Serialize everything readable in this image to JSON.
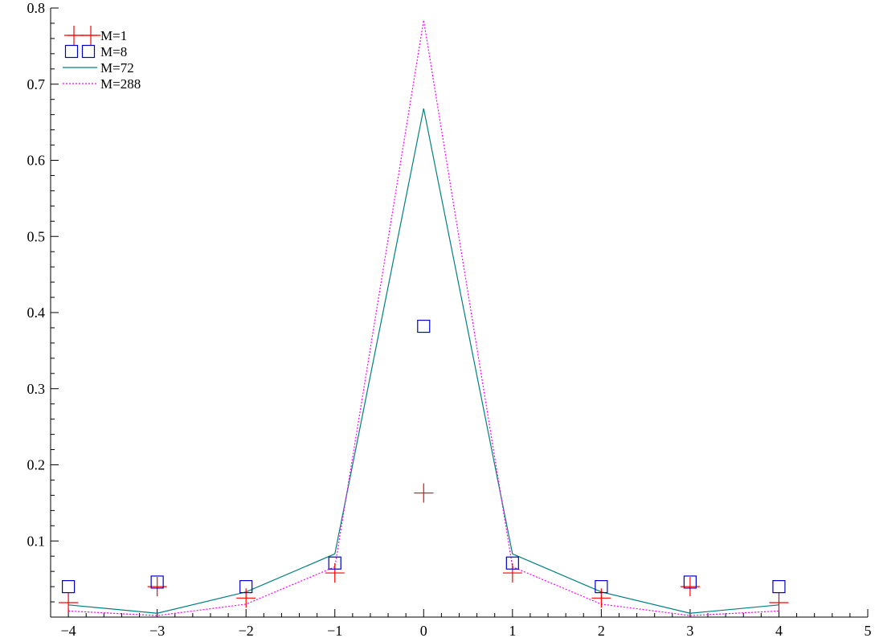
{
  "chart_data": {
    "type": "line",
    "title": "",
    "xlabel": "",
    "ylabel": "",
    "xlim": [
      -4.2,
      5
    ],
    "ylim": [
      0,
      0.8
    ],
    "grid": false,
    "legend_position": "top-left",
    "x_ticks": [
      -4,
      -3,
      -2,
      -1,
      0,
      1,
      2,
      3,
      4,
      5
    ],
    "x_tick_labels": [
      "−4",
      "−3",
      "−2",
      "−1",
      "0",
      "1",
      "2",
      "3",
      "4",
      "5"
    ],
    "y_ticks": [
      0.1,
      0.2,
      0.3,
      0.4,
      0.5,
      0.6,
      0.7,
      0.8
    ],
    "y_tick_labels": [
      "0.1",
      "0.2",
      "0.3",
      "0.4",
      "0.5",
      "0.6",
      "0.7",
      "0.8"
    ],
    "x": [
      -4,
      -3,
      -2,
      -1,
      0,
      1,
      2,
      3,
      4
    ],
    "series": [
      {
        "name": "M=1",
        "style": "plus-marker",
        "color": "#ff0000",
        "values": [
          0.019,
          0.04,
          0.025,
          0.058,
          0.163,
          0.058,
          0.025,
          0.04,
          0.019
        ]
      },
      {
        "name": "M=8",
        "style": "square-marker",
        "color": "#0000cc",
        "values": [
          0.04,
          0.046,
          0.04,
          0.071,
          0.382,
          0.071,
          0.04,
          0.046,
          0.04
        ]
      },
      {
        "name": "M=72",
        "style": "solid-line",
        "color": "#008080",
        "values": [
          0.016,
          0.005,
          0.033,
          0.083,
          0.668,
          0.083,
          0.033,
          0.005,
          0.016
        ]
      },
      {
        "name": "M=288",
        "style": "dotted-line",
        "color": "#ff00ff",
        "values": [
          0.008,
          0.002,
          0.017,
          0.066,
          0.784,
          0.066,
          0.017,
          0.002,
          0.008
        ]
      }
    ]
  }
}
